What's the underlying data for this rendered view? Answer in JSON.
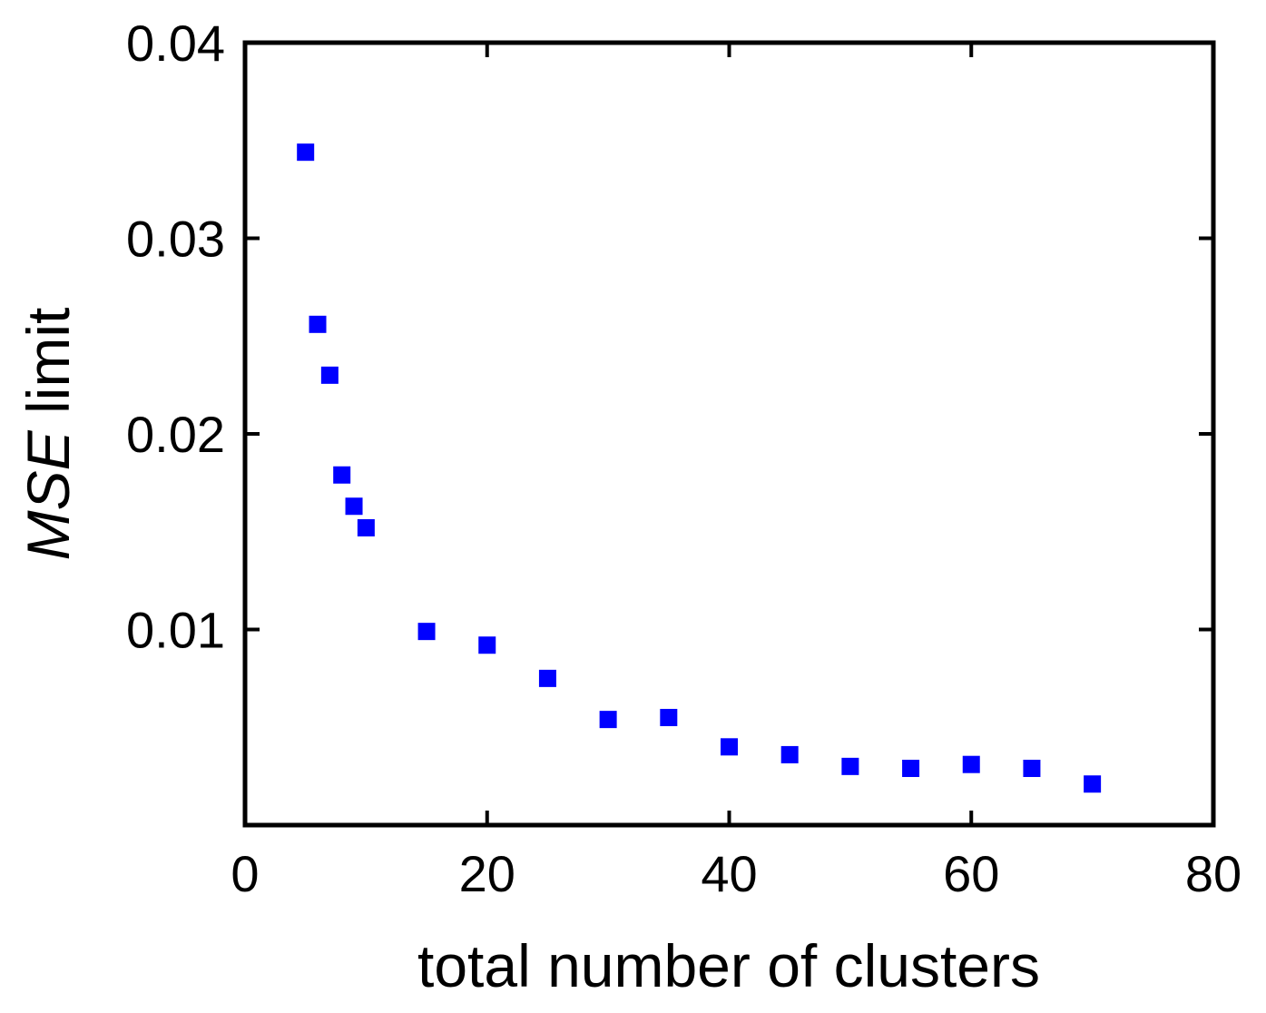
{
  "chart_data": {
    "type": "scatter",
    "title": "",
    "xlabel": "total number of clusters",
    "ylabel_italic": "MSE",
    "ylabel_rest": " limit",
    "xlim": [
      0,
      80
    ],
    "ylim": [
      0.0,
      0.04
    ],
    "x_ticks": [
      0,
      20,
      40,
      60,
      80
    ],
    "x_tick_labels": [
      "0",
      "20",
      "40",
      "60",
      "80"
    ],
    "y_ticks": [
      0.01,
      0.02,
      0.03,
      0.04
    ],
    "y_tick_labels": [
      "0.01",
      "0.02",
      "0.03",
      "0.04"
    ],
    "grid": false,
    "marker": "square",
    "color": "#0000ff",
    "series": [
      {
        "x": [
          5,
          6,
          7,
          8,
          9,
          10,
          15,
          20,
          25,
          30,
          35,
          40,
          45,
          50,
          55,
          60,
          65,
          70
        ],
        "y": [
          0.0344,
          0.0256,
          0.023,
          0.0179,
          0.0163,
          0.0152,
          0.0099,
          0.0092,
          0.0075,
          0.0054,
          0.0055,
          0.004,
          0.0036,
          0.003,
          0.0029,
          0.0031,
          0.0029,
          0.0021
        ]
      }
    ]
  }
}
